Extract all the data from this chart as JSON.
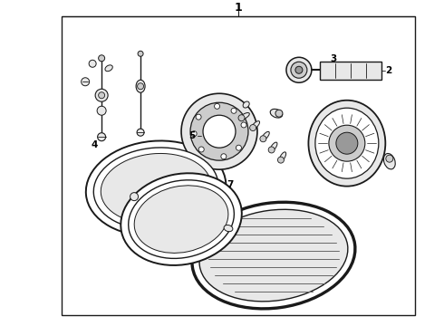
{
  "bg_color": "#ffffff",
  "border_color": "#1a1a1a",
  "line_color": "#1a1a1a",
  "fill_white": "#ffffff",
  "fill_light": "#e8e8e8",
  "fill_med": "#cccccc",
  "fill_dark": "#999999",
  "fill_vdark": "#555555"
}
